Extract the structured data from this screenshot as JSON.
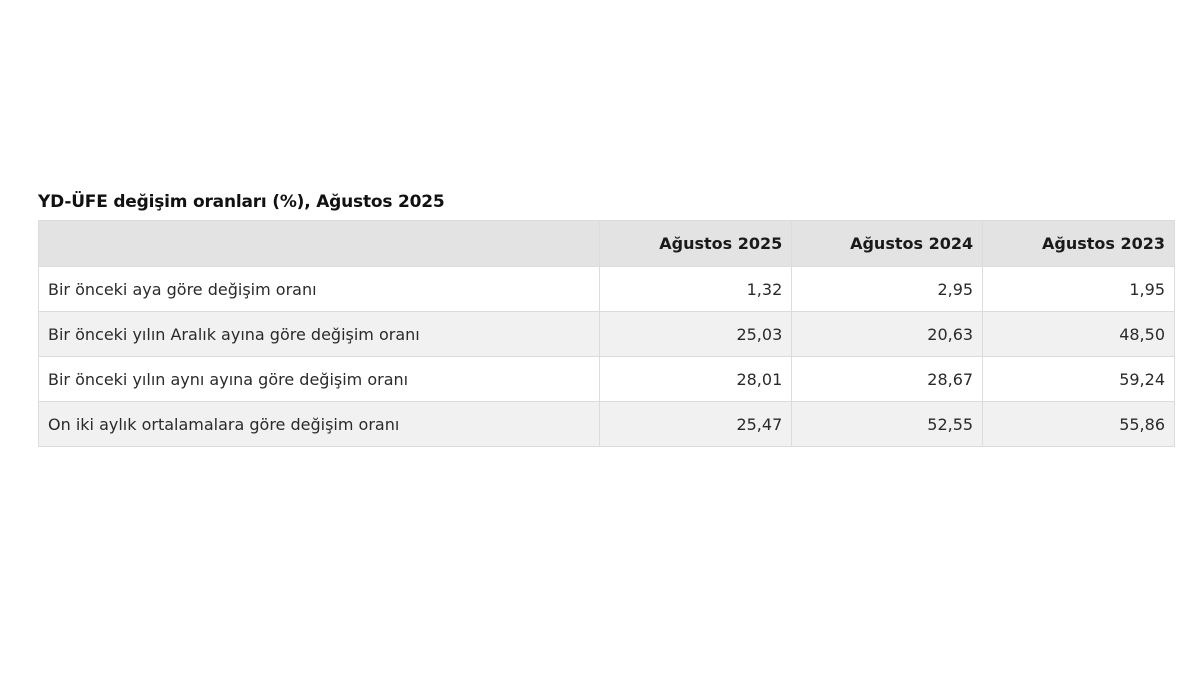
{
  "title": "YD-ÜFE değişim oranları (%), Ağustos 2025",
  "table": {
    "headers": [
      "",
      "Ağustos 2025",
      "Ağustos 2024",
      "Ağustos 2023"
    ],
    "rows": [
      {
        "label": "Bir önceki aya göre değişim oranı",
        "values": [
          "1,32",
          "2,95",
          "1,95"
        ]
      },
      {
        "label": "Bir önceki yılın Aralık ayına göre değişim oranı",
        "values": [
          "25,03",
          "20,63",
          "48,50"
        ]
      },
      {
        "label": "Bir önceki yılın aynı ayına göre değişim oranı",
        "values": [
          "28,01",
          "28,67",
          "59,24"
        ]
      },
      {
        "label": "On iki aylık ortalamalara göre değişim oranı",
        "values": [
          "25,47",
          "52,55",
          "55,86"
        ]
      }
    ]
  }
}
